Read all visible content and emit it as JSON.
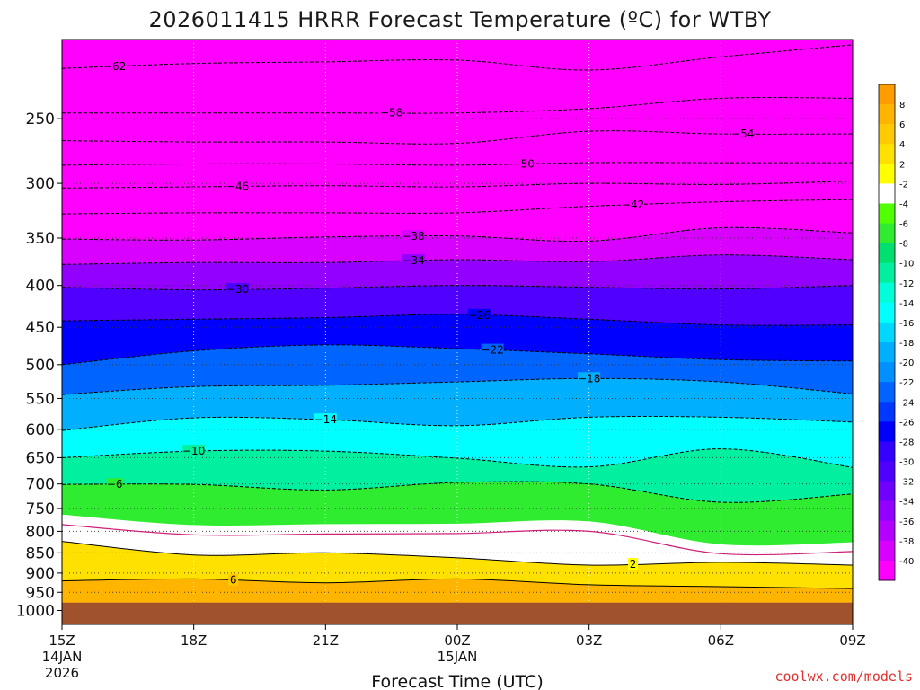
{
  "chart_data": {
    "type": "heatmap",
    "title": "2026011415 HRRR Forecast Temperature (ºC) for WTBY",
    "xlabel": "Forecast Time (UTC)",
    "credit": "coolwx.com/models",
    "y_axis": {
      "name": "pressure",
      "unit": "hPa",
      "scale": "log",
      "inverted": true,
      "range": [
        1040,
        200
      ],
      "ticks": [
        250,
        300,
        350,
        400,
        450,
        500,
        550,
        600,
        650,
        700,
        750,
        800,
        850,
        900,
        950,
        1000
      ]
    },
    "x_axis": {
      "range": [
        "2026-01-14T15Z",
        "2026-01-15T09Z"
      ],
      "ticks": [
        {
          "hour": 15,
          "label": "15Z",
          "sub1": "14JAN",
          "sub2": "2026"
        },
        {
          "hour": 18,
          "label": "18Z",
          "sub1": "",
          "sub2": ""
        },
        {
          "hour": 21,
          "label": "21Z",
          "sub1": "",
          "sub2": ""
        },
        {
          "hour": 24,
          "label": "00Z",
          "sub1": "15JAN",
          "sub2": ""
        },
        {
          "hour": 27,
          "label": "03Z",
          "sub1": "",
          "sub2": ""
        },
        {
          "hour": 30,
          "label": "06Z",
          "sub1": "",
          "sub2": ""
        },
        {
          "hour": 33,
          "label": "09Z",
          "sub1": "",
          "sub2": ""
        }
      ]
    },
    "hours": [
      15,
      18,
      21,
      24,
      27,
      30,
      33
    ],
    "grid": {
      "vertical": "dotted",
      "horizontal": "dotted"
    },
    "ground": {
      "color": "#a0522d",
      "pressure_top": 978
    },
    "colorbar": {
      "position": "right",
      "levels": [
        {
          "label": "",
          "color": "#ff9c00"
        },
        {
          "label": "8",
          "color": "#ffb400"
        },
        {
          "label": "6",
          "color": "#ffcb00"
        },
        {
          "label": "4",
          "color": "#ffe100"
        },
        {
          "label": "2",
          "color": "#ffff00"
        },
        {
          "label": "-2",
          "color": "#ffffff"
        },
        {
          "label": "-4",
          "color": "#50ff00"
        },
        {
          "label": "-6",
          "color": "#30ec30"
        },
        {
          "label": "-8",
          "color": "#00e070"
        },
        {
          "label": "-10",
          "color": "#00f0a0"
        },
        {
          "label": "-12",
          "color": "#00ffd8"
        },
        {
          "label": "-14",
          "color": "#00ffff"
        },
        {
          "label": "-16",
          "color": "#00d8ff"
        },
        {
          "label": "-18",
          "color": "#00b0ff"
        },
        {
          "label": "-20",
          "color": "#0090ff"
        },
        {
          "label": "-22",
          "color": "#0064ff"
        },
        {
          "label": "-24",
          "color": "#0038ff"
        },
        {
          "label": "-26",
          "color": "#0000ff"
        },
        {
          "label": "-28",
          "color": "#3400ff"
        },
        {
          "label": "-30",
          "color": "#5000ff"
        },
        {
          "label": "-32",
          "color": "#7000ff"
        },
        {
          "label": "-34",
          "color": "#9400ff"
        },
        {
          "label": "-36",
          "color": "#b400ff"
        },
        {
          "label": "-38",
          "color": "#d800ff"
        },
        {
          "label": "-40",
          "color": "#ff00ff"
        }
      ]
    },
    "zero_isotherm": {
      "color": "#d0207a",
      "values": [
        785,
        808,
        806,
        805,
        800,
        852,
        847
      ]
    },
    "isotherms": [
      {
        "temp": -62,
        "values": [
          217,
          214,
          213,
          212,
          218,
          210,
          203
        ],
        "label": "62",
        "label_at": 16.2
      },
      {
        "temp": -58,
        "values": [
          246,
          246,
          246,
          246,
          243,
          236,
          236
        ],
        "label": "58",
        "label_at": 22.5
      },
      {
        "temp": -54,
        "values": [
          266,
          267,
          267,
          268,
          259,
          261,
          261
        ],
        "label": "54",
        "label_at": 30.5
      },
      {
        "temp": -50,
        "values": [
          285,
          284,
          284,
          285,
          283,
          283,
          283
        ],
        "label": "50",
        "label_at": 25.5
      },
      {
        "temp": -46,
        "values": [
          304,
          303,
          302,
          303,
          300,
          301,
          298
        ],
        "label": "46",
        "label_at": 19.0
      },
      {
        "temp": -42,
        "values": [
          327,
          326,
          326,
          326,
          320,
          316,
          314
        ],
        "label": "42",
        "label_at": 28.0
      },
      {
        "temp": -38,
        "values": [
          351,
          352,
          349,
          348,
          353,
          340,
          345
        ],
        "label": "38",
        "label_at": 23.0
      },
      {
        "temp": -34,
        "values": [
          377,
          375,
          375,
          372,
          374,
          367,
          372
        ],
        "label": "34",
        "label_at": 23.0
      },
      {
        "temp": -30,
        "values": [
          402,
          405,
          403,
          400,
          402,
          404,
          400
        ],
        "label": "30",
        "label_at": 19.0
      },
      {
        "temp": -26,
        "values": [
          442,
          440,
          438,
          434,
          440,
          447,
          447
        ],
        "label": "26",
        "label_at": 24.5
      },
      {
        "temp": -22,
        "values": [
          500,
          481,
          473,
          478,
          485,
          493,
          495
        ],
        "label": "22",
        "label_at": 24.8
      },
      {
        "temp": -18,
        "values": [
          544,
          532,
          530,
          525,
          520,
          525,
          543
        ],
        "label": "18",
        "label_at": 27.0
      },
      {
        "temp": -14,
        "values": [
          602,
          581,
          584,
          594,
          580,
          580,
          588
        ],
        "label": "14",
        "label_at": 21.0
      },
      {
        "temp": -10,
        "values": [
          650,
          638,
          638,
          651,
          667,
          634,
          668
        ],
        "label": "10",
        "label_at": 18.0
      },
      {
        "temp": -6,
        "values": [
          701,
          701,
          712,
          697,
          700,
          737,
          720
        ],
        "label": "6",
        "label_at": 16.2
      },
      {
        "temp": 2,
        "values": [
          823,
          855,
          850,
          862,
          880,
          873,
          880
        ],
        "label": "2",
        "label_at": 28.0
      },
      {
        "temp": 6,
        "values": [
          920,
          915,
          925,
          915,
          930,
          935,
          940
        ],
        "label": "6",
        "label_at": 18.9
      }
    ]
  }
}
